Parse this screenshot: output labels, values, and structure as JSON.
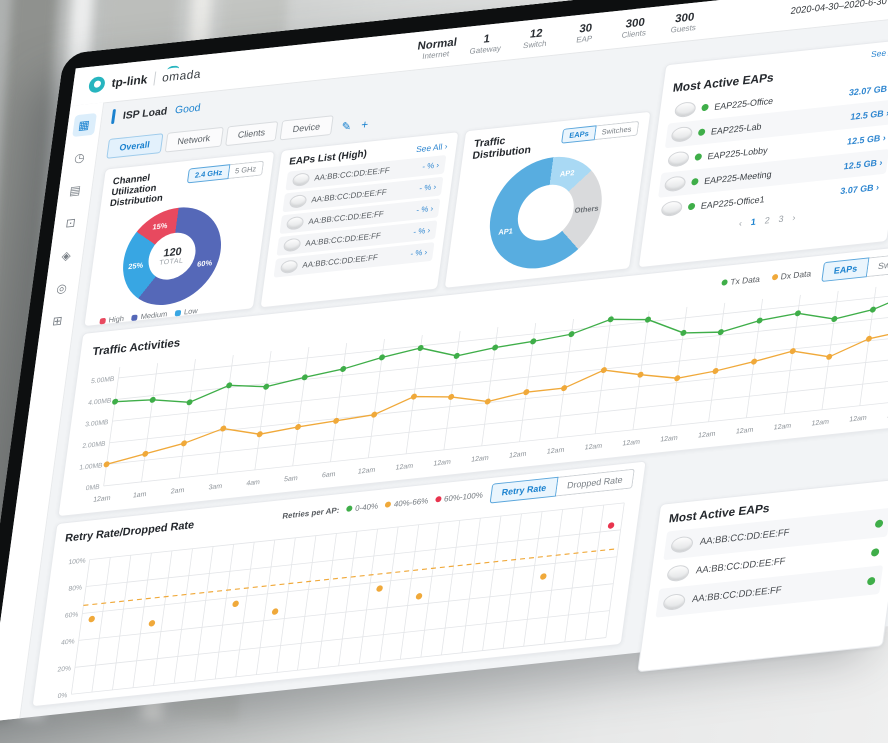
{
  "brand": {
    "name": "tp-link",
    "product": "omada"
  },
  "header": {
    "stats": [
      {
        "value": "Normal",
        "label": "Internet"
      },
      {
        "value": "1",
        "label": "Gateway"
      },
      {
        "value": "12",
        "label": "Switch"
      },
      {
        "value": "30",
        "label": "EAP"
      },
      {
        "value": "300",
        "label": "Clients"
      },
      {
        "value": "300",
        "label": "Guests"
      }
    ],
    "date_range": "2020-04-30–2020-6-30"
  },
  "sidebar": {
    "items": [
      {
        "name": "dashboard-icon",
        "glyph": "▦",
        "active": true
      },
      {
        "name": "statistics-icon",
        "glyph": "◷"
      },
      {
        "name": "map-icon",
        "glyph": "▤"
      },
      {
        "name": "clients-icon",
        "glyph": "⊡"
      },
      {
        "name": "insight-icon",
        "glyph": "◈"
      },
      {
        "name": "reports-icon",
        "glyph": "◎"
      },
      {
        "name": "logs-icon",
        "glyph": "⊞"
      }
    ]
  },
  "isp": {
    "label": "ISP Load",
    "status": "Good"
  },
  "tabs": {
    "items": [
      {
        "label": "Overall"
      },
      {
        "label": "Network"
      },
      {
        "label": "Clients"
      },
      {
        "label": "Device"
      }
    ]
  },
  "channel_card": {
    "title": "Channel Utilization Distribution",
    "bands": [
      "2.4 GHz",
      "5 GHz"
    ]
  },
  "eaps_card": {
    "title": "EAPs List (High)",
    "see_all": "See All",
    "rows": [
      {
        "mac": "AA:BB:CC:DD:EE:FF",
        "value": "- %"
      },
      {
        "mac": "AA:BB:CC:DD:EE:FF",
        "value": "- %"
      },
      {
        "mac": "AA:BB:CC:DD:EE:FF",
        "value": "- %"
      },
      {
        "mac": "AA:BB:CC:DD:EE:FF",
        "value": "- %"
      },
      {
        "mac": "AA:BB:CC:DD:EE:FF",
        "value": "- %"
      }
    ]
  },
  "distribution_card": {
    "title": "Traffic Distribution",
    "toggle": [
      "EAPs",
      "Switches"
    ]
  },
  "most_active_card": {
    "title": "Most Active EAPs",
    "see_all": "See All",
    "rows": [
      {
        "name": "EAP225-Office",
        "value": "32.07 GB"
      },
      {
        "name": "EAP225-Lab",
        "value": "12.5 GB"
      },
      {
        "name": "EAP225-Lobby",
        "value": "12.5 GB"
      },
      {
        "name": "EAP225-Meeting",
        "value": "12.5 GB"
      },
      {
        "name": "EAP225-Office1",
        "value": "3.07 GB"
      }
    ],
    "pages": [
      "1",
      "2",
      "3"
    ]
  },
  "traffic_card": {
    "title": "Traffic Activities",
    "toggle": [
      "EAPs",
      "Switches"
    ]
  },
  "retry_card": {
    "title": "Retry Rate/Dropped Rate",
    "legend_label": "Retries per AP:",
    "legend": [
      {
        "label": "0-40%",
        "color": "#3fae49"
      },
      {
        "label": "40%-66%",
        "color": "#f0a93a"
      },
      {
        "label": "60%-100%",
        "color": "#e8344e"
      }
    ],
    "buttons": [
      "Retry Rate",
      "Dropped Rate"
    ]
  },
  "bottom_active_card": {
    "title": "Most Active EAPs",
    "rows": [
      {
        "mac": "AA:BB:CC:DD:EE:FF"
      },
      {
        "mac": "AA:BB:CC:DD:EE:FF"
      },
      {
        "mac": "AA:BB:CC:DD:EE:FF"
      }
    ]
  },
  "chart_data": [
    {
      "id": "channel_utilization",
      "type": "pie",
      "title": "Channel Utilization Distribution",
      "labels": [
        "Medium",
        "Low",
        "High"
      ],
      "values": [
        60,
        25,
        15
      ],
      "colors": [
        "#5568b8",
        "#38a6e3",
        "#e8495f"
      ],
      "slice_labels": [
        "60%",
        "25%",
        "15%"
      ],
      "label_colors": [
        "#ffffff",
        "#ffffff",
        "#ffffff"
      ],
      "center_value": "120",
      "center_label": "TOTAL",
      "legend": [
        {
          "label": "High",
          "color": "#e8495f"
        },
        {
          "label": "Medium",
          "color": "#5568b8"
        },
        {
          "label": "Low",
          "color": "#38a6e3"
        }
      ],
      "band_selected": "2.4 GHz"
    },
    {
      "id": "traffic_distribution",
      "type": "pie",
      "title": "Traffic Distribution",
      "labels": [
        "AP2",
        "Others",
        "AP1"
      ],
      "values": [
        13,
        25,
        62
      ],
      "colors": [
        "#a9d9f4",
        "#d9dadc",
        "#58ade0"
      ],
      "slice_labels": [
        "AP2",
        "Others",
        "AP1"
      ],
      "label_colors": [
        "#ffffff",
        "#6a6f74",
        "#ffffff"
      ]
    },
    {
      "id": "traffic_activities",
      "type": "line",
      "title": "Traffic Activities",
      "x": [
        "12am",
        "1am",
        "2am",
        "3am",
        "4am",
        "5am",
        "6am",
        "12am",
        "12am",
        "12am",
        "12am",
        "12am",
        "12am",
        "12am",
        "12am",
        "12am",
        "12am",
        "12am",
        "12am",
        "12am",
        "12am",
        "12am"
      ],
      "series": [
        {
          "name": "Tx Data",
          "color": "#3fae49",
          "values": [
            3.9,
            3.8,
            3.5,
            4.1,
            3.85,
            4.1,
            4.3,
            4.65,
            4.9,
            4.35,
            4.55,
            4.65,
            4.8,
            5.3,
            5.1,
            4.3,
            4.15,
            4.5,
            4.65,
            4.2,
            4.45,
            5.05
          ]
        },
        {
          "name": "Dx Data",
          "color": "#f0a93a",
          "values": [
            1.0,
            1.3,
            1.6,
            2.1,
            1.65,
            1.8,
            1.9,
            2.0,
            2.65,
            2.45,
            2.05,
            2.3,
            2.3,
            2.95,
            2.55,
            2.2,
            2.35,
            2.6,
            2.9,
            2.45,
            3.1,
            3.3
          ]
        }
      ],
      "y_ticks": [
        "5.00MB",
        "4.00MB",
        "3.00MB",
        "2.00MB",
        "1.00MB",
        "0MB"
      ],
      "y_tick_values": [
        5,
        4,
        3,
        2,
        1,
        0
      ],
      "ylim": [
        0,
        5.5
      ],
      "legend_position": "top-right",
      "grid": true
    },
    {
      "id": "retry_rate",
      "type": "scatter",
      "title": "Retry Rate/Dropped Rate",
      "x_count": 26,
      "y_ticks": [
        "100%",
        "80%",
        "60%",
        "40%",
        "20%",
        "0%"
      ],
      "y_tick_values": [
        100,
        80,
        60,
        40,
        20,
        0
      ],
      "ylim": [
        0,
        100
      ],
      "threshold": {
        "value": 66,
        "color": "#f0a93a"
      },
      "points": [
        {
          "x": 0,
          "y": 55,
          "color": "#f0a93a"
        },
        {
          "x": 3,
          "y": 47,
          "color": "#f0a93a"
        },
        {
          "x": 7,
          "y": 55,
          "color": "#f0a93a"
        },
        {
          "x": 9,
          "y": 46,
          "color": "#f0a93a"
        },
        {
          "x": 14,
          "y": 55,
          "color": "#f0a93a"
        },
        {
          "x": 16,
          "y": 46,
          "color": "#f0a93a"
        },
        {
          "x": 22,
          "y": 51,
          "color": "#f0a93a"
        },
        {
          "x": 25,
          "y": 84,
          "color": "#e8344e"
        }
      ],
      "grid": true
    }
  ]
}
